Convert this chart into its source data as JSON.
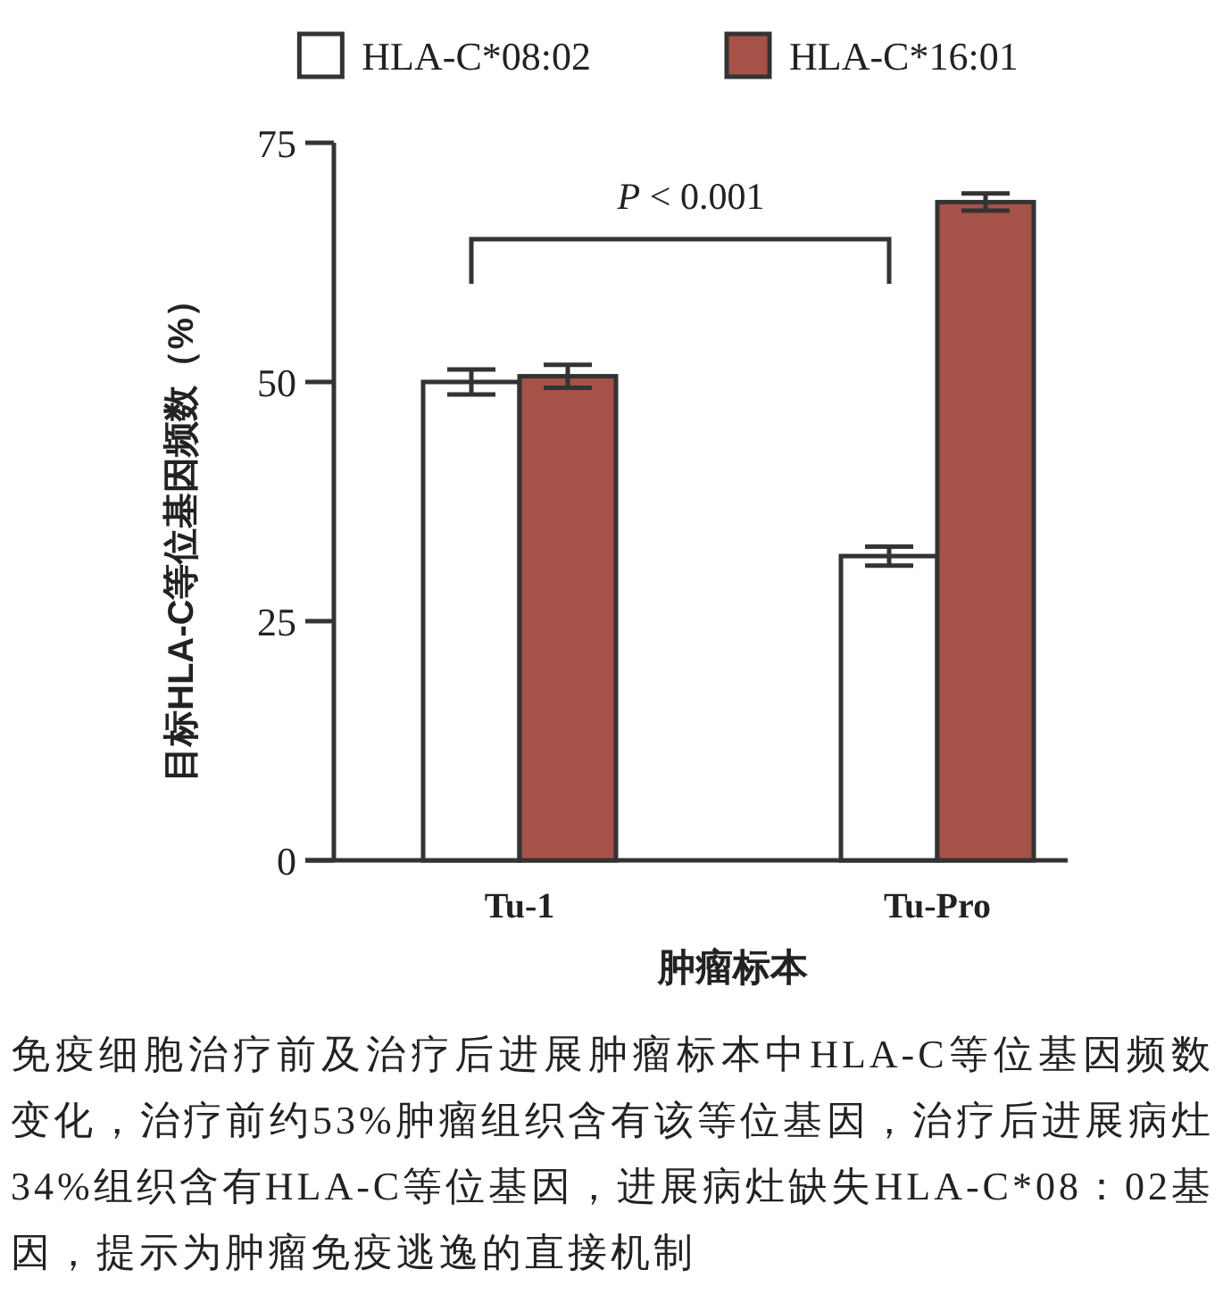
{
  "chart_data": {
    "type": "bar",
    "categories": [
      "Tu-1",
      "Tu-Pro"
    ],
    "series": [
      {
        "name": "HLA-C*08:02",
        "color": "#ffffff",
        "values": [
          50,
          31.8
        ],
        "errors": [
          1.3,
          1.0
        ]
      },
      {
        "name": "HLA-C*16:01",
        "color": "#a65249",
        "values": [
          50.6,
          68.8
        ],
        "errors": [
          1.2,
          0.9
        ]
      }
    ],
    "xlabel": "肿瘤标本",
    "ylabel": "目标HLA-C等位基因频数（%）",
    "ylim": [
      0,
      75
    ],
    "yticks": [
      0,
      25,
      50,
      75
    ],
    "legend": "top",
    "annotations": [
      "*P* < 0.001",
      "免疫细胞治疗前及治疗后进展肿瘤标本中HLA-C等位基因频数变化，治疗前约53%肿瘤组织含有该等位基因，治疗后进展病灶34%组织含有HLA-C等位基因，进展病灶缺失HLA-C*08：02基因，提示为肿瘤免疫逃逸的直接机制"
    ]
  }
}
